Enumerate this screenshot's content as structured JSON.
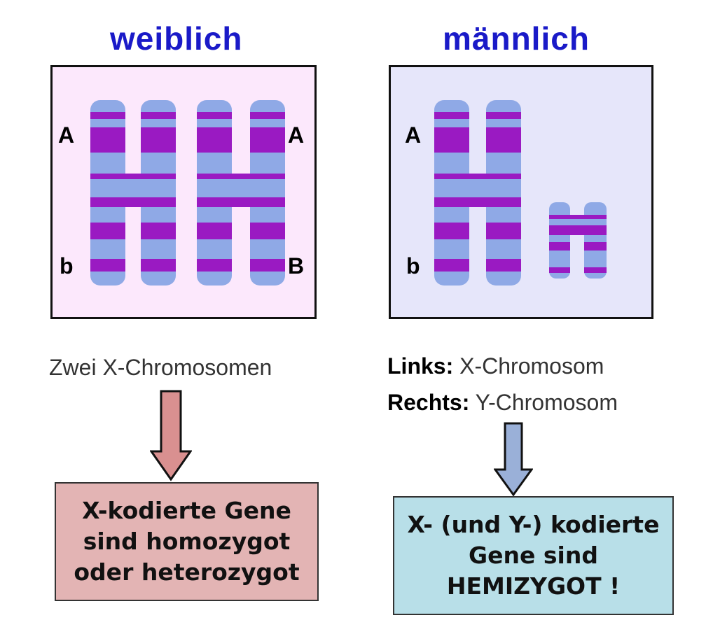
{
  "colors": {
    "title": "#1a1ac8",
    "female_bg": "#fce8fc",
    "male_bg": "#e6e6fa",
    "chromosome_light": "#8fa9e6",
    "chromosome_band": "#9a1ac2",
    "arrow_female": "#d99090",
    "arrow_male": "#9ab0d8",
    "box_female": "#e3b4b4",
    "box_male": "#b8dfe8"
  },
  "female": {
    "title": "weiblich",
    "labels": {
      "top_left": "A",
      "bottom_left": "b",
      "top_right": "A",
      "bottom_right": "B"
    },
    "caption": "Zwei X-Chromosomen",
    "result_lines": [
      "X-kodierte Gene",
      "sind homozygot",
      "oder heterozygot"
    ]
  },
  "male": {
    "title": "männlich",
    "labels": {
      "top_left": "A",
      "bottom_left": "b"
    },
    "caption_line1_bold": "Links:",
    "caption_line1_text": " X-Chromosom",
    "caption_line2_bold": "Rechts:",
    "caption_line2_text": " Y-Chromosom",
    "result_lines": [
      "X- (und Y-) kodierte",
      "Gene sind",
      "HEMIZYGOT !"
    ]
  }
}
